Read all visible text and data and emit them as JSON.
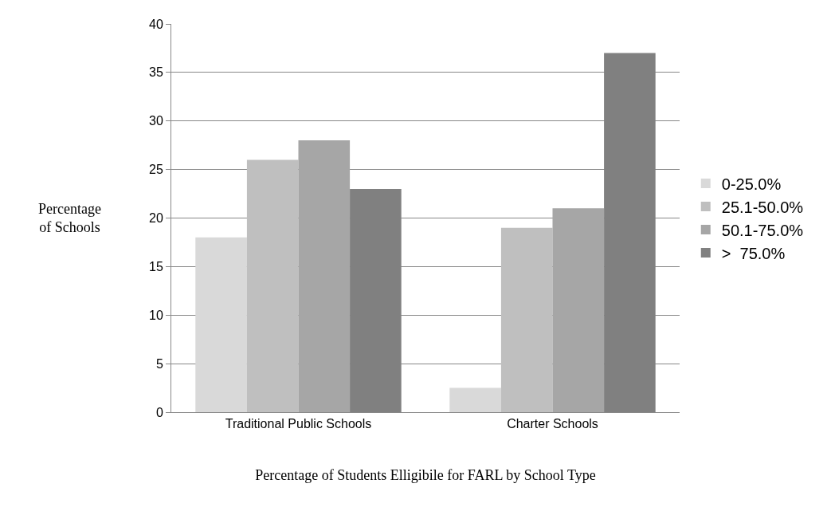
{
  "chart_data": {
    "type": "bar",
    "xlabel": "Percentage of Students Elligibile for FARL by School Type",
    "ylabel": "Percentage of Schools",
    "categories": [
      "Traditional Public Schools",
      "Charter Schools"
    ],
    "series": [
      {
        "name": "0-25.0%",
        "color": "#d9d9d9",
        "values": [
          18,
          2.5
        ]
      },
      {
        "name": "25.1-50.0%",
        "color": "#bfbfbf",
        "values": [
          26,
          19
        ]
      },
      {
        "name": "50.1-75.0%",
        "color": "#a6a6a6",
        "values": [
          28,
          21
        ]
      },
      {
        "name": ">  75.0%",
        "color": "#808080",
        "values": [
          23,
          37
        ]
      }
    ],
    "ylim": [
      0,
      40
    ],
    "yticks": [
      0,
      5,
      10,
      15,
      20,
      25,
      30,
      35,
      40
    ],
    "grid": "y",
    "legend": "right"
  }
}
